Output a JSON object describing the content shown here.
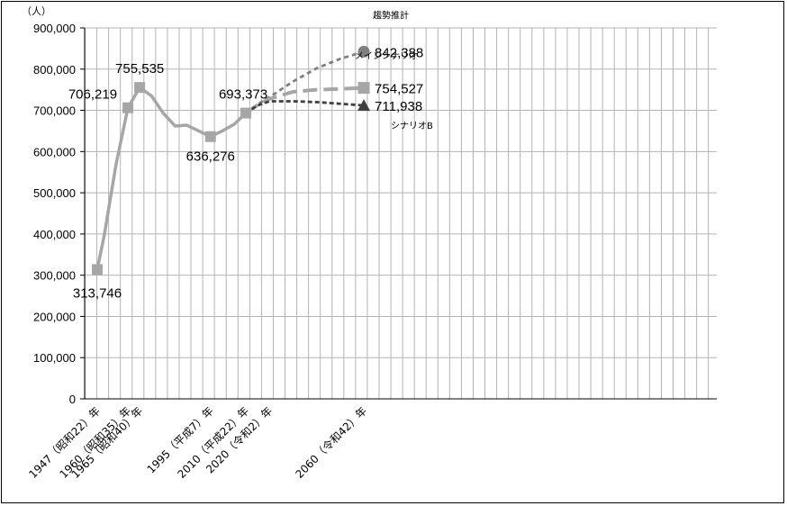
{
  "chart_data": {
    "type": "line",
    "y_unit": "（人）",
    "ylim": [
      0,
      900000
    ],
    "y_ticks": [
      "900,000",
      "800,000",
      "700,000",
      "600,000",
      "500,000",
      "400,000",
      "300,000",
      "200,000",
      "100,000",
      "0"
    ],
    "grid": true,
    "x_tick_labels": [
      {
        "year": 1947,
        "label": "1947（昭和22）年"
      },
      {
        "year": 1960,
        "label": "1960（昭和35）年"
      },
      {
        "year": 1965,
        "label": "1965（昭和40）年"
      },
      {
        "year": 1995,
        "label": "1995（平成7）年"
      },
      {
        "year": 2010,
        "label": "2010（平成22）年"
      },
      {
        "year": 2020,
        "label": "2020（令和2）年"
      },
      {
        "year": 2060,
        "label": "2060（令和42）年"
      }
    ],
    "actual": {
      "color": "#a6a6a6",
      "points": [
        {
          "year": 1947,
          "value": 313746
        },
        {
          "year": 1950,
          "value": 398000
        },
        {
          "year": 1955,
          "value": 570000
        },
        {
          "year": 1960,
          "value": 706219
        },
        {
          "year": 1965,
          "value": 755535
        },
        {
          "year": 1970,
          "value": 735000
        },
        {
          "year": 1975,
          "value": 693000
        },
        {
          "year": 1980,
          "value": 662000
        },
        {
          "year": 1985,
          "value": 664000
        },
        {
          "year": 1990,
          "value": 650000
        },
        {
          "year": 1995,
          "value": 636276
        },
        {
          "year": 2000,
          "value": 650000
        },
        {
          "year": 2005,
          "value": 666000
        },
        {
          "year": 2010,
          "value": 693373
        }
      ],
      "labels": [
        {
          "year": 1947,
          "text": "313,746"
        },
        {
          "year": 1960,
          "text": "706,219"
        },
        {
          "year": 1965,
          "text": "755,535"
        },
        {
          "year": 1995,
          "text": "636,276"
        },
        {
          "year": 2010,
          "text": "693,373"
        }
      ]
    },
    "projections": [
      {
        "name": "趨勢推計",
        "color": "#7f7f7f",
        "marker": "circle",
        "value_label": "842,388",
        "points": [
          {
            "year": 2010,
            "value": 693373
          },
          {
            "year": 2015,
            "value": 715000
          },
          {
            "year": 2020,
            "value": 732000
          },
          {
            "year": 2030,
            "value": 770000
          },
          {
            "year": 2040,
            "value": 802000
          },
          {
            "year": 2050,
            "value": 825000
          },
          {
            "year": 2060,
            "value": 842388
          }
        ]
      },
      {
        "name": "メインシナリオ",
        "color": "#a6a6a6",
        "marker": "square",
        "value_label": "754,527",
        "points": [
          {
            "year": 2010,
            "value": 693373
          },
          {
            "year": 2015,
            "value": 713000
          },
          {
            "year": 2020,
            "value": 728000
          },
          {
            "year": 2030,
            "value": 745000
          },
          {
            "year": 2040,
            "value": 750000
          },
          {
            "year": 2050,
            "value": 752000
          },
          {
            "year": 2060,
            "value": 754527
          }
        ]
      },
      {
        "name": "シナリオB",
        "color": "#404040",
        "marker": "triangle",
        "value_label": "711,938",
        "points": [
          {
            "year": 2010,
            "value": 693373
          },
          {
            "year": 2015,
            "value": 712000
          },
          {
            "year": 2020,
            "value": 722000
          },
          {
            "year": 2030,
            "value": 722000
          },
          {
            "year": 2040,
            "value": 720000
          },
          {
            "year": 2050,
            "value": 716000
          },
          {
            "year": 2060,
            "value": 711938
          }
        ]
      }
    ]
  }
}
